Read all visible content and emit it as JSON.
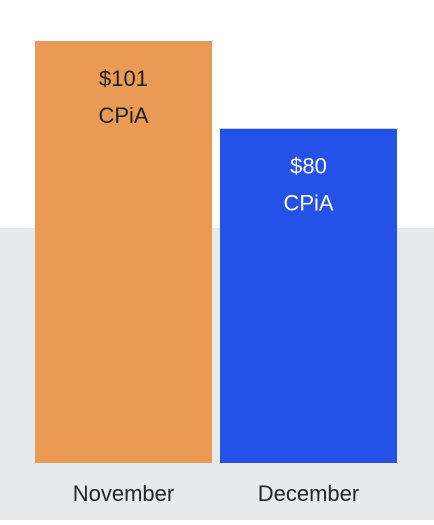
{
  "chart_data": {
    "type": "bar",
    "categories": [
      "November",
      "December"
    ],
    "values": [
      101,
      80
    ],
    "value_labels": [
      [
        "$101",
        "CPiA"
      ],
      [
        "$80",
        "CPiA"
      ]
    ],
    "title": "",
    "xlabel": "",
    "ylabel": "",
    "ylim": [
      0,
      101
    ],
    "grid": false,
    "legend": "none"
  },
  "colors": {
    "bars": [
      "#e99a55",
      "#2451e8"
    ],
    "label_text": [
      "#1f1f1f",
      "#ffffff"
    ],
    "axis_text": "#262626",
    "background": "#ffffff",
    "band": "#e8e9eb"
  }
}
